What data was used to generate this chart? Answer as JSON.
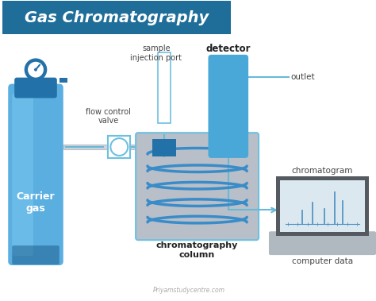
{
  "title": "Gas Chromatography",
  "title_color": "#ffffff",
  "title_bg_color": "#1f6e99",
  "bg_color": "#ffffff",
  "blue_dark": "#2271a8",
  "blue_mid": "#4aa8d8",
  "blue_light": "#6ec0e0",
  "blue_lighter": "#a8d8f0",
  "blue_cyl_body": "#5aaee0",
  "blue_cyl_light": "#7ac8f0",
  "blue_cyl_dark": "#1a5a8a",
  "gray_box": "#b8bfc8",
  "gray_box_light": "#d0d4da",
  "coil_color": "#3a8cc8",
  "coil_dark": "#2060a0",
  "line_color": "#6ab8d8",
  "text_color": "#444444",
  "text_bold_color": "#222222",
  "laptop_gray": "#9aa0aa",
  "laptop_dark": "#555a60",
  "laptop_base": "#b0b8c0",
  "screen_bg": "#dce8f0",
  "peak_color": "#4a8fc0",
  "watermark": "Priyamstudycentre.com",
  "labels": {
    "carrier_gas": "Carrier\ngas",
    "flow_control": "flow control\nvalve",
    "sample_injection": "sample\ninjection port",
    "detector": "detector",
    "outlet": "outlet",
    "chrom_column": "chromatography\ncolumn",
    "chromatogram": "chromatogram",
    "computer_data": "computer data"
  }
}
